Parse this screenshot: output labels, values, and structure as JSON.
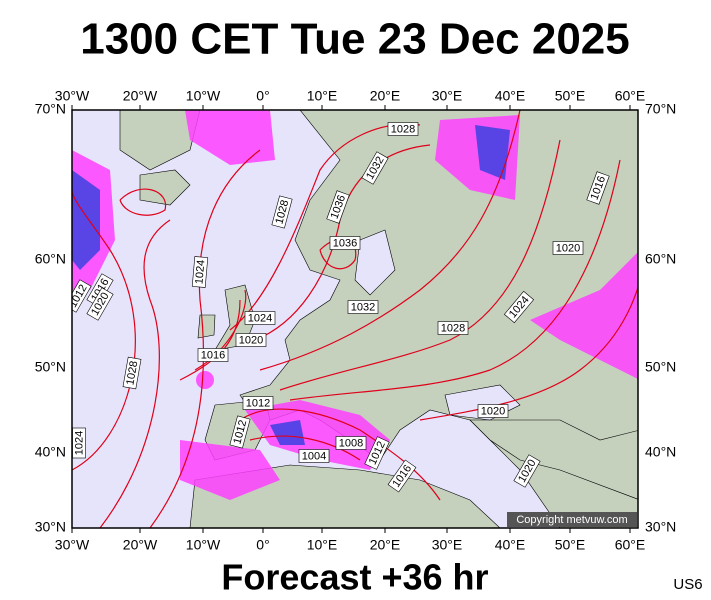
{
  "header": {
    "title": "1300 CET Tue 23 Dec 2025"
  },
  "map": {
    "lon_labels": [
      "30°W",
      "20°W",
      "10°W",
      "0°",
      "10°E",
      "20°E",
      "30°E",
      "40°E",
      "50°E",
      "60°E"
    ],
    "lat_labels": [
      "70°N",
      "60°N",
      "50°N",
      "40°N",
      "30°N"
    ],
    "isobar_labels": [
      1028,
      1032,
      1036,
      1036,
      1028,
      1024,
      1012,
      1016,
      1020,
      1024,
      1020,
      1016,
      1032,
      1028,
      1024,
      1020,
      1016,
      1028,
      1012,
      1012,
      1008,
      1004,
      1012,
      1016,
      1020,
      1020,
      1024
    ],
    "copyright": "Copyright metvuw.com"
  },
  "footer": {
    "forecast": "Forecast +36 hr",
    "code": "US6"
  }
}
